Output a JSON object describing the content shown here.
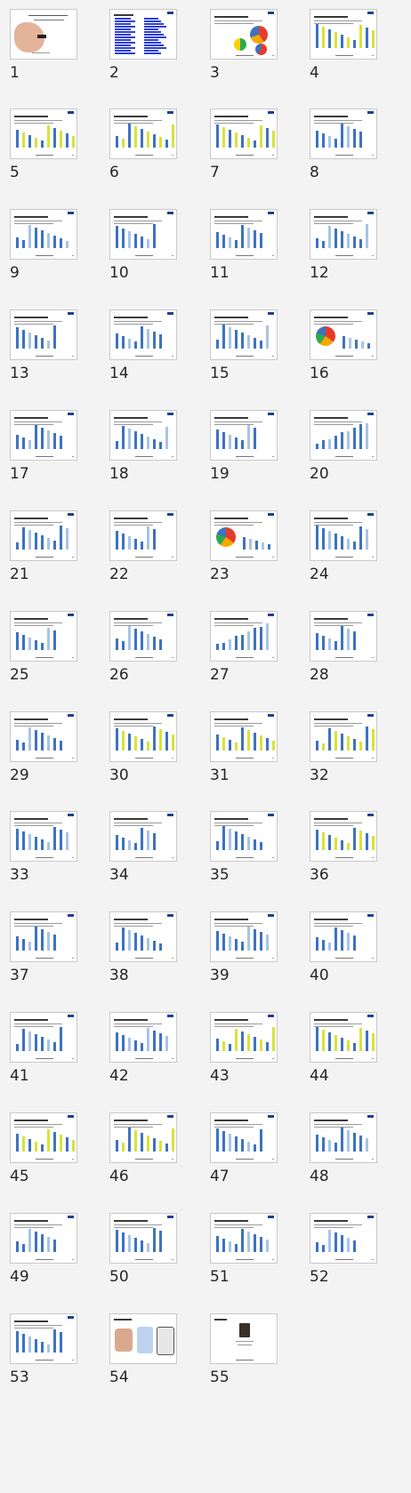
{
  "slides": [
    {
      "number": "1",
      "kind": "title"
    },
    {
      "number": "2",
      "kind": "toc"
    },
    {
      "number": "3",
      "kind": "pies"
    },
    {
      "number": "4",
      "kind": "bars-mixed"
    },
    {
      "number": "5",
      "kind": "bars-mixed"
    },
    {
      "number": "6",
      "kind": "bars-mixed"
    },
    {
      "number": "7",
      "kind": "bars-mixed"
    },
    {
      "number": "8",
      "kind": "bars-blue"
    },
    {
      "number": "9",
      "kind": "bars-blue"
    },
    {
      "number": "10",
      "kind": "bars-blue"
    },
    {
      "number": "11",
      "kind": "bars-blue"
    },
    {
      "number": "12",
      "kind": "bars-blue"
    },
    {
      "number": "13",
      "kind": "bars-blue"
    },
    {
      "number": "14",
      "kind": "bars-blue"
    },
    {
      "number": "15",
      "kind": "bars-blue"
    },
    {
      "number": "16",
      "kind": "pie-bars"
    },
    {
      "number": "17",
      "kind": "bars-blue"
    },
    {
      "number": "18",
      "kind": "bars-blue"
    },
    {
      "number": "19",
      "kind": "bars-blue"
    },
    {
      "number": "20",
      "kind": "bars-rising"
    },
    {
      "number": "21",
      "kind": "bars-blue"
    },
    {
      "number": "22",
      "kind": "bars-blue"
    },
    {
      "number": "23",
      "kind": "pie-bars"
    },
    {
      "number": "24",
      "kind": "bars-blue"
    },
    {
      "number": "25",
      "kind": "bars-blue"
    },
    {
      "number": "26",
      "kind": "bars-blue"
    },
    {
      "number": "27",
      "kind": "bars-rising"
    },
    {
      "number": "28",
      "kind": "bars-blue"
    },
    {
      "number": "29",
      "kind": "bars-blue"
    },
    {
      "number": "30",
      "kind": "bars-mixed"
    },
    {
      "number": "31",
      "kind": "bars-mixed"
    },
    {
      "number": "32",
      "kind": "bars-mixed"
    },
    {
      "number": "33",
      "kind": "bars-blue"
    },
    {
      "number": "34",
      "kind": "bars-blue"
    },
    {
      "number": "35",
      "kind": "bars-blue"
    },
    {
      "number": "36",
      "kind": "bars-mixed"
    },
    {
      "number": "37",
      "kind": "bars-blue"
    },
    {
      "number": "38",
      "kind": "bars-blue"
    },
    {
      "number": "39",
      "kind": "bars-blue"
    },
    {
      "number": "40",
      "kind": "bars-blue"
    },
    {
      "number": "41",
      "kind": "bars-blue"
    },
    {
      "number": "42",
      "kind": "bars-blue"
    },
    {
      "number": "43",
      "kind": "bars-mixed"
    },
    {
      "number": "44",
      "kind": "bars-mixed"
    },
    {
      "number": "45",
      "kind": "bars-mixed"
    },
    {
      "number": "46",
      "kind": "bars-mixed"
    },
    {
      "number": "47",
      "kind": "bars-blue"
    },
    {
      "number": "48",
      "kind": "bars-blue"
    },
    {
      "number": "49",
      "kind": "bars-blue"
    },
    {
      "number": "50",
      "kind": "bars-blue"
    },
    {
      "number": "51",
      "kind": "bars-blue"
    },
    {
      "number": "52",
      "kind": "bars-blue"
    },
    {
      "number": "53",
      "kind": "bars-blue"
    },
    {
      "number": "54",
      "kind": "images"
    },
    {
      "number": "55",
      "kind": "photo"
    }
  ],
  "colors": {
    "blue": "#3d73c0",
    "lightblue": "#a9c4e4",
    "yellow": "#d8e23a",
    "navy": "#1f3f8f",
    "link": "#2b3fd8"
  }
}
